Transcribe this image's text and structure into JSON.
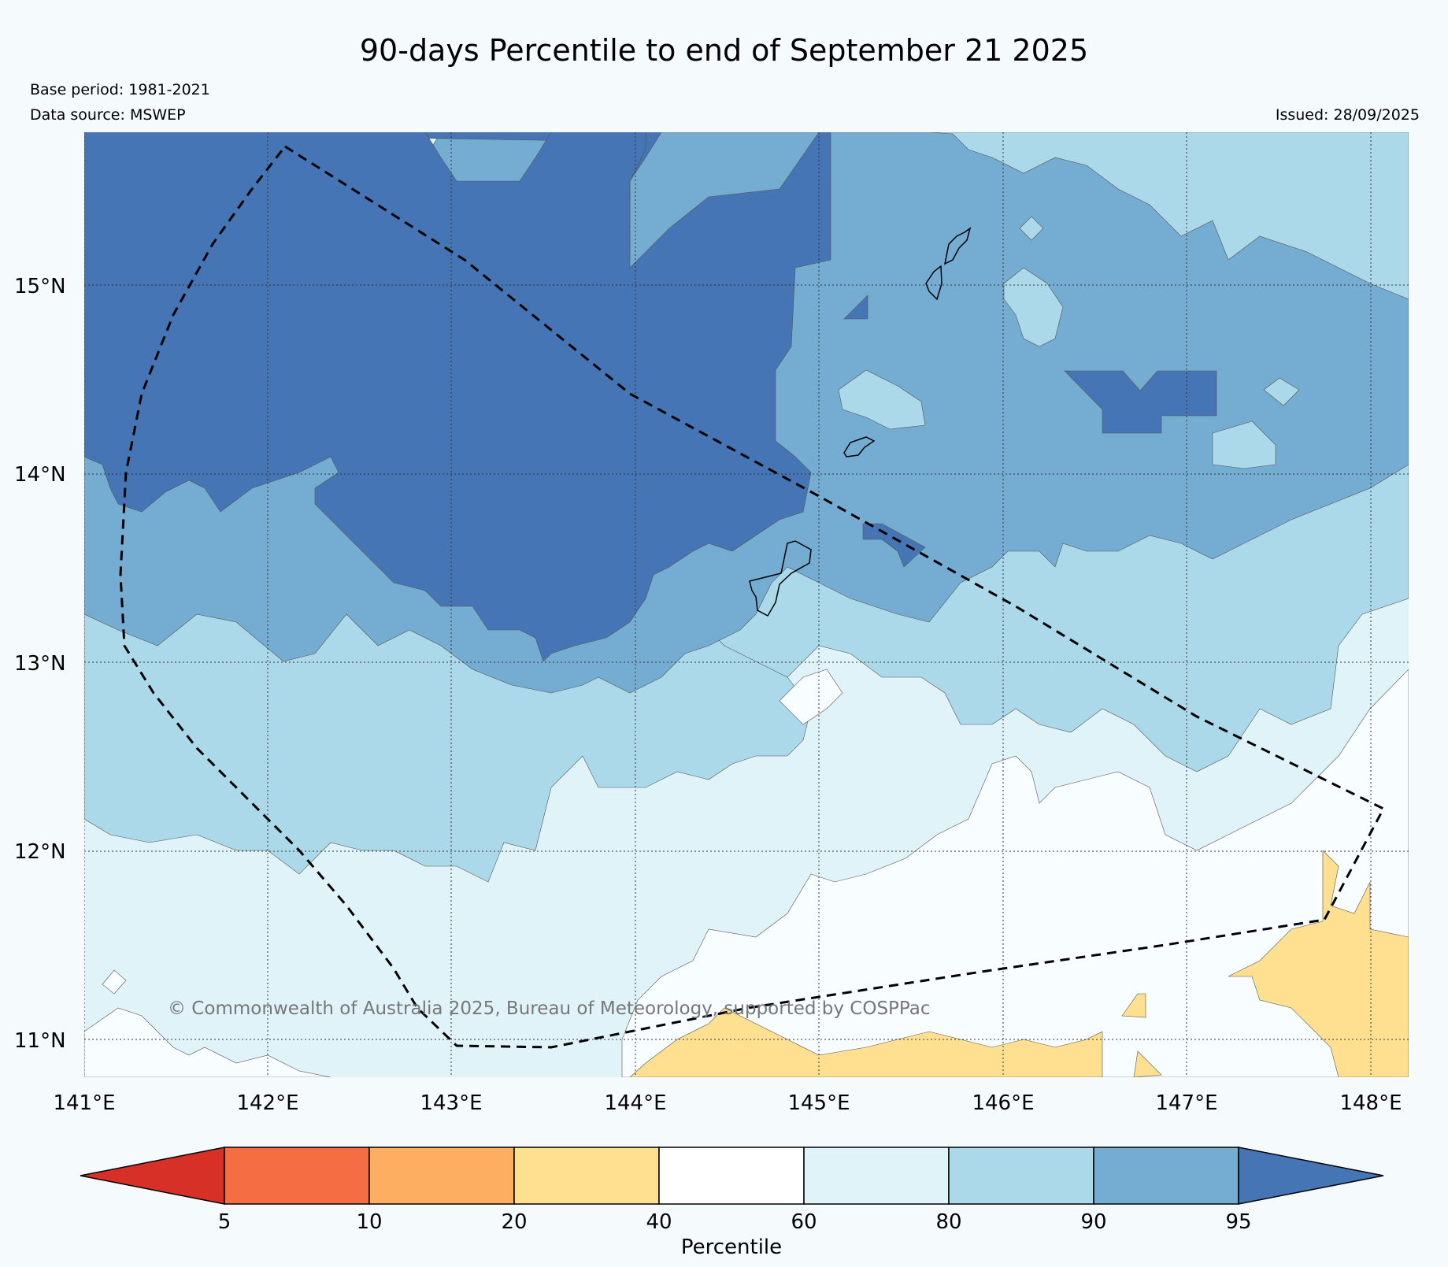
{
  "title": "90-days Percentile to end of September 21 2025",
  "base_period": "Base period: 1981-2021",
  "data_source": "Data source: MSWEP",
  "issued": "Issued: 28/09/2025",
  "copyright": "© Commonwealth of Australia 2025, Bureau of Meteorology, supported by COSPPac",
  "axes": {
    "lat_labels": [
      "15°N",
      "14°N",
      "13°N",
      "12°N",
      "11°N"
    ],
    "lon_labels": [
      "141°E",
      "142°E",
      "143°E",
      "144°E",
      "145°E",
      "146°E",
      "147°E",
      "148°E"
    ]
  },
  "colorbar": {
    "label": "Percentile",
    "ticks": [
      "5",
      "10",
      "20",
      "40",
      "60",
      "80",
      "90",
      "95"
    ],
    "colors": [
      "#d73027",
      "#f46d43",
      "#fdae61",
      "#fee090",
      "#ffffff",
      "#e0f3f8",
      "#abd9e9",
      "#74add1",
      "#4575b4"
    ]
  },
  "palette": {
    "p95": "#4575b4",
    "p90": "#74add1",
    "p80": "#abd9e9",
    "p60": "#e0f3f8",
    "p40": "#f8fdff",
    "p20": "#fee090"
  }
}
